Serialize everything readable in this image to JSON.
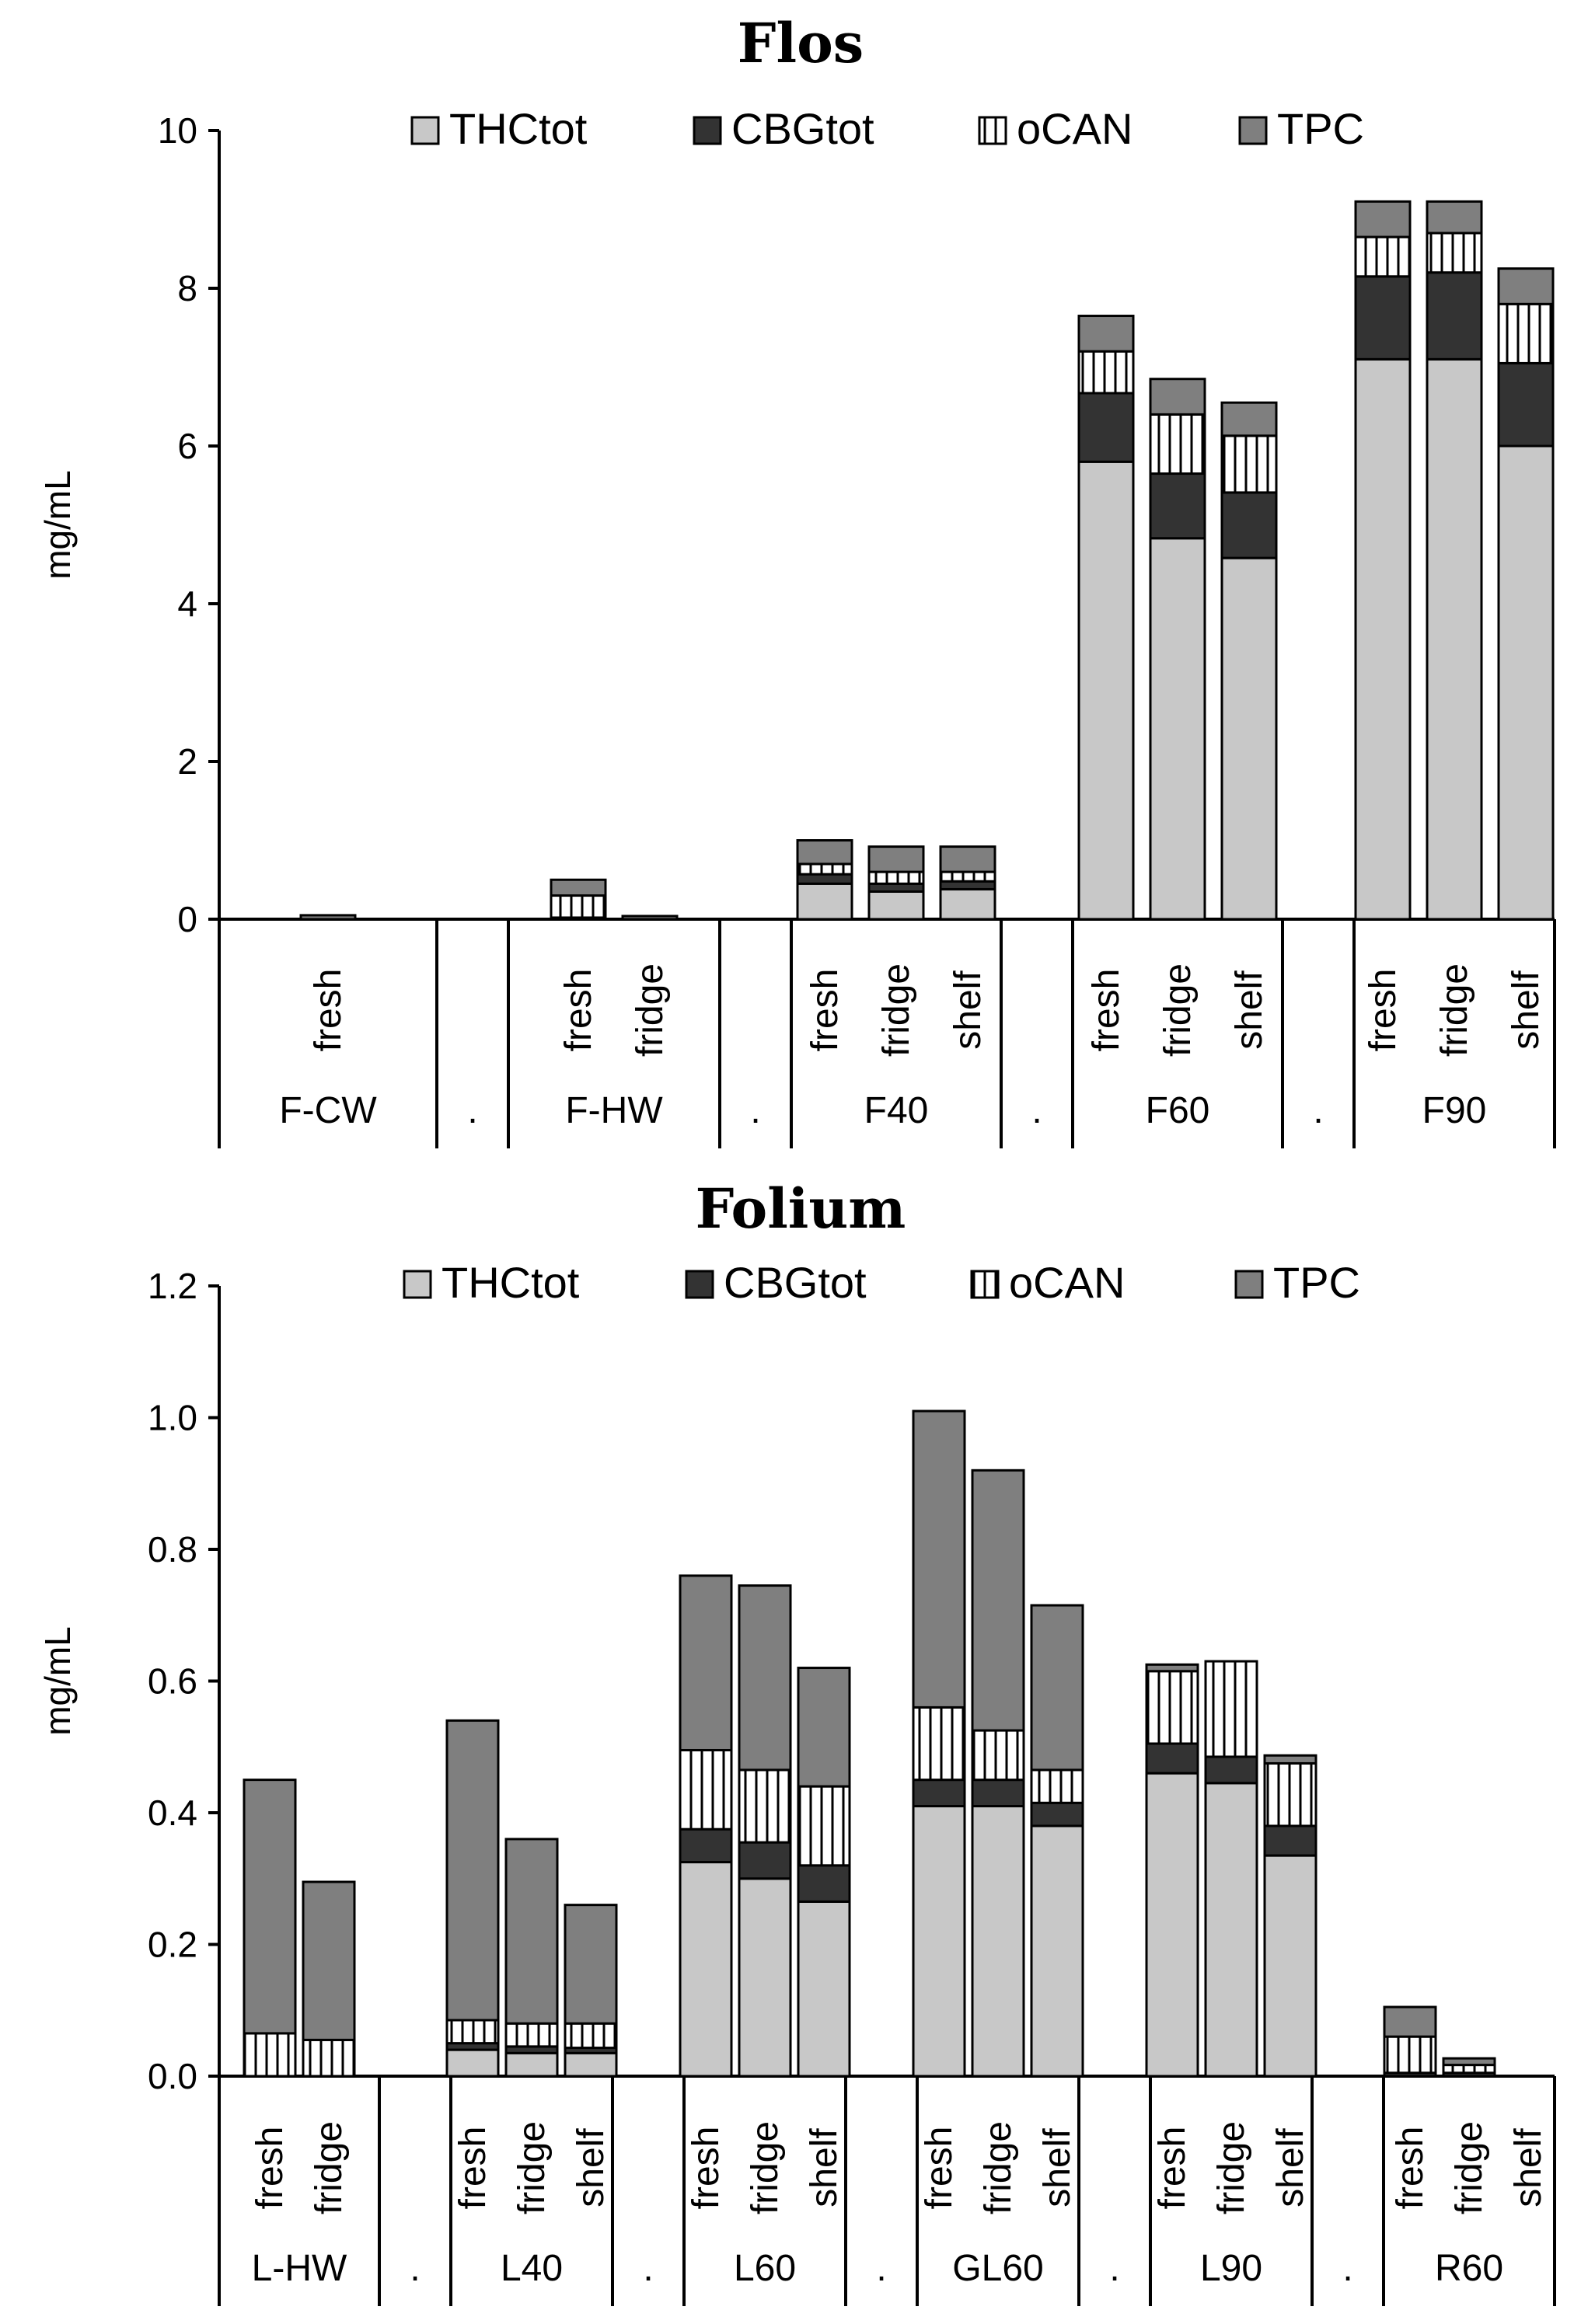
{
  "colors": {
    "THCtot": "#c8c8c8",
    "CBGtot": "#333333",
    "oCAN": "#ffffff",
    "TPC": "#7f7f7f"
  },
  "chart_data": [
    {
      "type": "bar",
      "stacked": true,
      "title": "Flos",
      "ylabel": "mg/mL",
      "ylim": [
        0,
        10
      ],
      "yticks": [
        "0",
        "2",
        "4",
        "6",
        "8",
        "10"
      ],
      "legend": [
        "THCtot",
        "CBGtot",
        "oCAN",
        "TPC"
      ],
      "legend_position": "top",
      "groups": [
        {
          "name": "F-CW",
          "bars": [
            {
              "label": "fresh",
              "THCtot": 0.0,
              "CBGtot": 0.0,
              "oCAN": 0.0,
              "TPC": 0.05
            }
          ]
        },
        {
          "name": ".",
          "bars": []
        },
        {
          "name": "F-HW",
          "bars": [
            {
              "label": "fresh",
              "THCtot": 0.02,
              "CBGtot": 0.0,
              "oCAN": 0.28,
              "TPC": 0.2
            },
            {
              "label": "fridge",
              "THCtot": 0.0,
              "CBGtot": 0.0,
              "oCAN": 0.0,
              "TPC": 0.04
            }
          ]
        },
        {
          "name": ".",
          "bars": []
        },
        {
          "name": "F40",
          "bars": [
            {
              "label": "fresh",
              "THCtot": 0.45,
              "CBGtot": 0.12,
              "oCAN": 0.13,
              "TPC": 0.3
            },
            {
              "label": "fridge",
              "THCtot": 0.35,
              "CBGtot": 0.1,
              "oCAN": 0.15,
              "TPC": 0.32
            },
            {
              "label": "shelf",
              "THCtot": 0.38,
              "CBGtot": 0.1,
              "oCAN": 0.12,
              "TPC": 0.32
            }
          ]
        },
        {
          "name": ".",
          "bars": []
        },
        {
          "name": "F60",
          "bars": [
            {
              "label": "fresh",
              "THCtot": 5.8,
              "CBGtot": 0.87,
              "oCAN": 0.53,
              "TPC": 0.45
            },
            {
              "label": "fridge",
              "THCtot": 4.83,
              "CBGtot": 0.82,
              "oCAN": 0.75,
              "TPC": 0.45
            },
            {
              "label": "shelf",
              "THCtot": 4.58,
              "CBGtot": 0.83,
              "oCAN": 0.72,
              "TPC": 0.42
            }
          ]
        },
        {
          "name": ".",
          "bars": []
        },
        {
          "name": "F90",
          "bars": [
            {
              "label": "fresh",
              "THCtot": 7.1,
              "CBGtot": 1.05,
              "oCAN": 0.5,
              "TPC": 0.45
            },
            {
              "label": "fridge",
              "THCtot": 7.1,
              "CBGtot": 1.1,
              "oCAN": 0.5,
              "TPC": 0.4
            },
            {
              "label": "shelf",
              "THCtot": 6.0,
              "CBGtot": 1.05,
              "oCAN": 0.75,
              "TPC": 0.45
            }
          ]
        }
      ]
    },
    {
      "type": "bar",
      "stacked": true,
      "title": "Folium",
      "ylabel": "mg/mL",
      "ylim": [
        0,
        1.2
      ],
      "yticks": [
        "0.0",
        "0.2",
        "0.4",
        "0.6",
        "0.8",
        "1.0",
        "1.2"
      ],
      "legend": [
        "THCtot",
        "CBGtot",
        "oCAN",
        "TPC"
      ],
      "legend_position": "top",
      "groups": [
        {
          "name": "L-HW",
          "bars": [
            {
              "label": "fresh",
              "THCtot": 0.0,
              "CBGtot": 0.0,
              "oCAN": 0.065,
              "TPC": 0.385
            },
            {
              "label": "fridge",
              "THCtot": 0.0,
              "CBGtot": 0.0,
              "oCAN": 0.055,
              "TPC": 0.24
            }
          ]
        },
        {
          "name": ".",
          "bars": []
        },
        {
          "name": "L40",
          "bars": [
            {
              "label": "fresh",
              "THCtot": 0.04,
              "CBGtot": 0.01,
              "oCAN": 0.035,
              "TPC": 0.455
            },
            {
              "label": "fridge",
              "THCtot": 0.035,
              "CBGtot": 0.01,
              "oCAN": 0.035,
              "TPC": 0.28
            },
            {
              "label": "shelf",
              "THCtot": 0.035,
              "CBGtot": 0.008,
              "oCAN": 0.037,
              "TPC": 0.18
            }
          ]
        },
        {
          "name": ".",
          "bars": []
        },
        {
          "name": "L60",
          "bars": [
            {
              "label": "fresh",
              "THCtot": 0.325,
              "CBGtot": 0.05,
              "oCAN": 0.12,
              "TPC": 0.265
            },
            {
              "label": "fridge",
              "THCtot": 0.3,
              "CBGtot": 0.055,
              "oCAN": 0.11,
              "TPC": 0.28
            },
            {
              "label": "shelf",
              "THCtot": 0.265,
              "CBGtot": 0.055,
              "oCAN": 0.12,
              "TPC": 0.18
            }
          ]
        },
        {
          "name": ".",
          "bars": []
        },
        {
          "name": "GL60",
          "bars": [
            {
              "label": "fresh",
              "THCtot": 0.41,
              "CBGtot": 0.04,
              "oCAN": 0.11,
              "TPC": 0.45
            },
            {
              "label": "fridge",
              "THCtot": 0.41,
              "CBGtot": 0.04,
              "oCAN": 0.075,
              "TPC": 0.395
            },
            {
              "label": "shelf",
              "THCtot": 0.38,
              "CBGtot": 0.035,
              "oCAN": 0.05,
              "TPC": 0.25
            }
          ]
        },
        {
          "name": ".",
          "bars": []
        },
        {
          "name": "L90",
          "bars": [
            {
              "label": "fresh",
              "THCtot": 0.46,
              "CBGtot": 0.045,
              "oCAN": 0.11,
              "TPC": 0.01
            },
            {
              "label": "fridge",
              "THCtot": 0.445,
              "CBGtot": 0.04,
              "oCAN": 0.145,
              "TPC": 0.0
            },
            {
              "label": "shelf",
              "THCtot": 0.335,
              "CBGtot": 0.045,
              "oCAN": 0.095,
              "TPC": 0.012
            }
          ]
        },
        {
          "name": ".",
          "bars": []
        },
        {
          "name": "R60",
          "bars": [
            {
              "label": "fresh",
              "THCtot": 0.0,
              "CBGtot": 0.005,
              "oCAN": 0.055,
              "TPC": 0.045
            },
            {
              "label": "fridge",
              "THCtot": 0.0,
              "CBGtot": 0.005,
              "oCAN": 0.012,
              "TPC": 0.01
            },
            {
              "label": "shelf",
              "THCtot": 0.0,
              "CBGtot": 0.0,
              "oCAN": 0.0,
              "TPC": 0.0
            }
          ]
        }
      ]
    }
  ]
}
